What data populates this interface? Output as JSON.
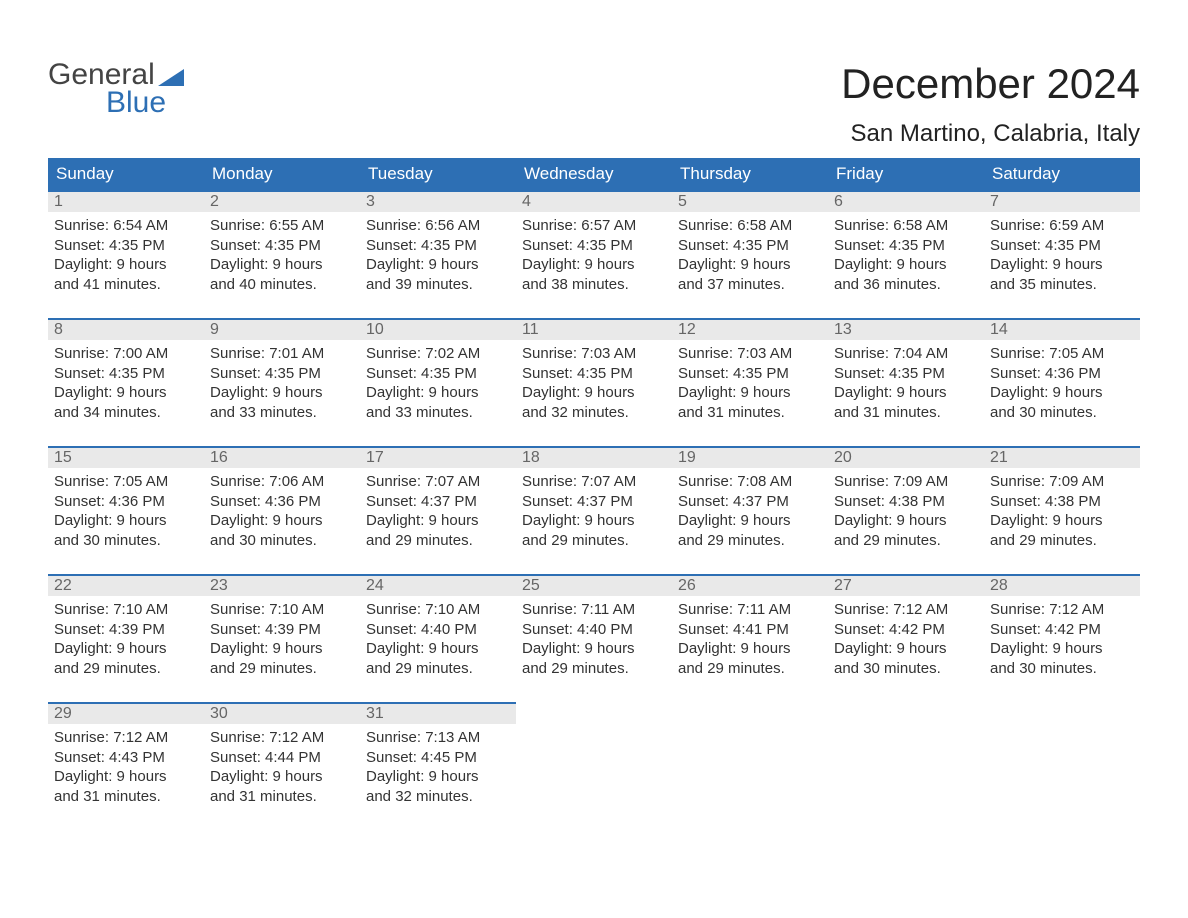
{
  "brand": {
    "part1": "General",
    "part2": "Blue"
  },
  "title": "December 2024",
  "location": "San Martino, Calabria, Italy",
  "colors": {
    "brand_blue": "#2d6fb4",
    "header_bg": "#2d6fb4",
    "header_text": "#ffffff",
    "daynum_bg": "#e9e9e9",
    "daynum_border": "#2d6fb4",
    "body_text": "#333333",
    "page_bg": "#ffffff"
  },
  "typography": {
    "title_fontsize": 42,
    "location_fontsize": 24,
    "dayheader_fontsize": 17,
    "cell_fontsize": 15
  },
  "calendar": {
    "type": "table",
    "columns": [
      "Sunday",
      "Monday",
      "Tuesday",
      "Wednesday",
      "Thursday",
      "Friday",
      "Saturday"
    ],
    "weeks": [
      [
        {
          "day": "1",
          "sunrise": "Sunrise: 6:54 AM",
          "sunset": "Sunset: 4:35 PM",
          "dl1": "Daylight: 9 hours",
          "dl2": "and 41 minutes."
        },
        {
          "day": "2",
          "sunrise": "Sunrise: 6:55 AM",
          "sunset": "Sunset: 4:35 PM",
          "dl1": "Daylight: 9 hours",
          "dl2": "and 40 minutes."
        },
        {
          "day": "3",
          "sunrise": "Sunrise: 6:56 AM",
          "sunset": "Sunset: 4:35 PM",
          "dl1": "Daylight: 9 hours",
          "dl2": "and 39 minutes."
        },
        {
          "day": "4",
          "sunrise": "Sunrise: 6:57 AM",
          "sunset": "Sunset: 4:35 PM",
          "dl1": "Daylight: 9 hours",
          "dl2": "and 38 minutes."
        },
        {
          "day": "5",
          "sunrise": "Sunrise: 6:58 AM",
          "sunset": "Sunset: 4:35 PM",
          "dl1": "Daylight: 9 hours",
          "dl2": "and 37 minutes."
        },
        {
          "day": "6",
          "sunrise": "Sunrise: 6:58 AM",
          "sunset": "Sunset: 4:35 PM",
          "dl1": "Daylight: 9 hours",
          "dl2": "and 36 minutes."
        },
        {
          "day": "7",
          "sunrise": "Sunrise: 6:59 AM",
          "sunset": "Sunset: 4:35 PM",
          "dl1": "Daylight: 9 hours",
          "dl2": "and 35 minutes."
        }
      ],
      [
        {
          "day": "8",
          "sunrise": "Sunrise: 7:00 AM",
          "sunset": "Sunset: 4:35 PM",
          "dl1": "Daylight: 9 hours",
          "dl2": "and 34 minutes."
        },
        {
          "day": "9",
          "sunrise": "Sunrise: 7:01 AM",
          "sunset": "Sunset: 4:35 PM",
          "dl1": "Daylight: 9 hours",
          "dl2": "and 33 minutes."
        },
        {
          "day": "10",
          "sunrise": "Sunrise: 7:02 AM",
          "sunset": "Sunset: 4:35 PM",
          "dl1": "Daylight: 9 hours",
          "dl2": "and 33 minutes."
        },
        {
          "day": "11",
          "sunrise": "Sunrise: 7:03 AM",
          "sunset": "Sunset: 4:35 PM",
          "dl1": "Daylight: 9 hours",
          "dl2": "and 32 minutes."
        },
        {
          "day": "12",
          "sunrise": "Sunrise: 7:03 AM",
          "sunset": "Sunset: 4:35 PM",
          "dl1": "Daylight: 9 hours",
          "dl2": "and 31 minutes."
        },
        {
          "day": "13",
          "sunrise": "Sunrise: 7:04 AM",
          "sunset": "Sunset: 4:35 PM",
          "dl1": "Daylight: 9 hours",
          "dl2": "and 31 minutes."
        },
        {
          "day": "14",
          "sunrise": "Sunrise: 7:05 AM",
          "sunset": "Sunset: 4:36 PM",
          "dl1": "Daylight: 9 hours",
          "dl2": "and 30 minutes."
        }
      ],
      [
        {
          "day": "15",
          "sunrise": "Sunrise: 7:05 AM",
          "sunset": "Sunset: 4:36 PM",
          "dl1": "Daylight: 9 hours",
          "dl2": "and 30 minutes."
        },
        {
          "day": "16",
          "sunrise": "Sunrise: 7:06 AM",
          "sunset": "Sunset: 4:36 PM",
          "dl1": "Daylight: 9 hours",
          "dl2": "and 30 minutes."
        },
        {
          "day": "17",
          "sunrise": "Sunrise: 7:07 AM",
          "sunset": "Sunset: 4:37 PM",
          "dl1": "Daylight: 9 hours",
          "dl2": "and 29 minutes."
        },
        {
          "day": "18",
          "sunrise": "Sunrise: 7:07 AM",
          "sunset": "Sunset: 4:37 PM",
          "dl1": "Daylight: 9 hours",
          "dl2": "and 29 minutes."
        },
        {
          "day": "19",
          "sunrise": "Sunrise: 7:08 AM",
          "sunset": "Sunset: 4:37 PM",
          "dl1": "Daylight: 9 hours",
          "dl2": "and 29 minutes."
        },
        {
          "day": "20",
          "sunrise": "Sunrise: 7:09 AM",
          "sunset": "Sunset: 4:38 PM",
          "dl1": "Daylight: 9 hours",
          "dl2": "and 29 minutes."
        },
        {
          "day": "21",
          "sunrise": "Sunrise: 7:09 AM",
          "sunset": "Sunset: 4:38 PM",
          "dl1": "Daylight: 9 hours",
          "dl2": "and 29 minutes."
        }
      ],
      [
        {
          "day": "22",
          "sunrise": "Sunrise: 7:10 AM",
          "sunset": "Sunset: 4:39 PM",
          "dl1": "Daylight: 9 hours",
          "dl2": "and 29 minutes."
        },
        {
          "day": "23",
          "sunrise": "Sunrise: 7:10 AM",
          "sunset": "Sunset: 4:39 PM",
          "dl1": "Daylight: 9 hours",
          "dl2": "and 29 minutes."
        },
        {
          "day": "24",
          "sunrise": "Sunrise: 7:10 AM",
          "sunset": "Sunset: 4:40 PM",
          "dl1": "Daylight: 9 hours",
          "dl2": "and 29 minutes."
        },
        {
          "day": "25",
          "sunrise": "Sunrise: 7:11 AM",
          "sunset": "Sunset: 4:40 PM",
          "dl1": "Daylight: 9 hours",
          "dl2": "and 29 minutes."
        },
        {
          "day": "26",
          "sunrise": "Sunrise: 7:11 AM",
          "sunset": "Sunset: 4:41 PM",
          "dl1": "Daylight: 9 hours",
          "dl2": "and 29 minutes."
        },
        {
          "day": "27",
          "sunrise": "Sunrise: 7:12 AM",
          "sunset": "Sunset: 4:42 PM",
          "dl1": "Daylight: 9 hours",
          "dl2": "and 30 minutes."
        },
        {
          "day": "28",
          "sunrise": "Sunrise: 7:12 AM",
          "sunset": "Sunset: 4:42 PM",
          "dl1": "Daylight: 9 hours",
          "dl2": "and 30 minutes."
        }
      ],
      [
        {
          "day": "29",
          "sunrise": "Sunrise: 7:12 AM",
          "sunset": "Sunset: 4:43 PM",
          "dl1": "Daylight: 9 hours",
          "dl2": "and 31 minutes."
        },
        {
          "day": "30",
          "sunrise": "Sunrise: 7:12 AM",
          "sunset": "Sunset: 4:44 PM",
          "dl1": "Daylight: 9 hours",
          "dl2": "and 31 minutes."
        },
        {
          "day": "31",
          "sunrise": "Sunrise: 7:13 AM",
          "sunset": "Sunset: 4:45 PM",
          "dl1": "Daylight: 9 hours",
          "dl2": "and 32 minutes."
        },
        null,
        null,
        null,
        null
      ]
    ]
  }
}
